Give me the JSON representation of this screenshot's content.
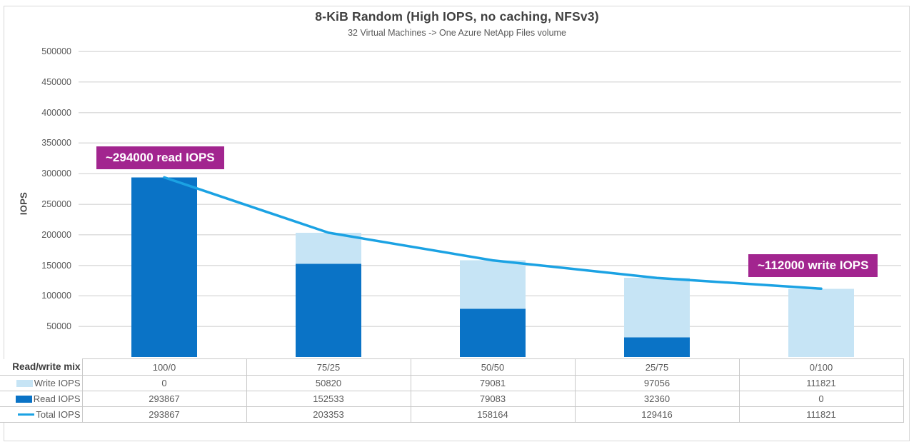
{
  "chart_data": {
    "type": "bar",
    "stacked": true,
    "combo_line": true,
    "title": "8-KiB Random (High IOPS, no caching, NFSv3)",
    "subtitle": "32 Virtual Machines -> One Azure NetApp Files volume",
    "xlabel": "Read/write mix",
    "ylabel": "IOPS",
    "categories": [
      "100/0",
      "75/25",
      "50/50",
      "25/75",
      "0/100"
    ],
    "series": [
      {
        "name": "Write IOPS",
        "role": "bar",
        "stack_level": "top",
        "color": "#c6e4f5",
        "values": [
          0,
          50820,
          79081,
          97056,
          111821
        ]
      },
      {
        "name": "Read IOPS",
        "role": "bar",
        "stack_level": "bottom",
        "color": "#0a73c6",
        "values": [
          293867,
          152533,
          79083,
          32360,
          0
        ]
      },
      {
        "name": "Total IOPS",
        "role": "line",
        "color": "#1ba2e3",
        "values": [
          293867,
          203353,
          158164,
          129416,
          111821
        ]
      }
    ],
    "ylim": [
      0,
      500000
    ],
    "yticks": [
      50000,
      100000,
      150000,
      200000,
      250000,
      300000,
      350000,
      400000,
      450000,
      500000
    ],
    "grid": "horizontal",
    "legend_position": "table-row-headers",
    "annotations": [
      {
        "text": "~294000 read IOPS",
        "bg": "#a2258f"
      },
      {
        "text": "~112000 write IOPS",
        "bg": "#a2258f"
      }
    ]
  },
  "table": {
    "mix_label": "Read/write mix"
  }
}
